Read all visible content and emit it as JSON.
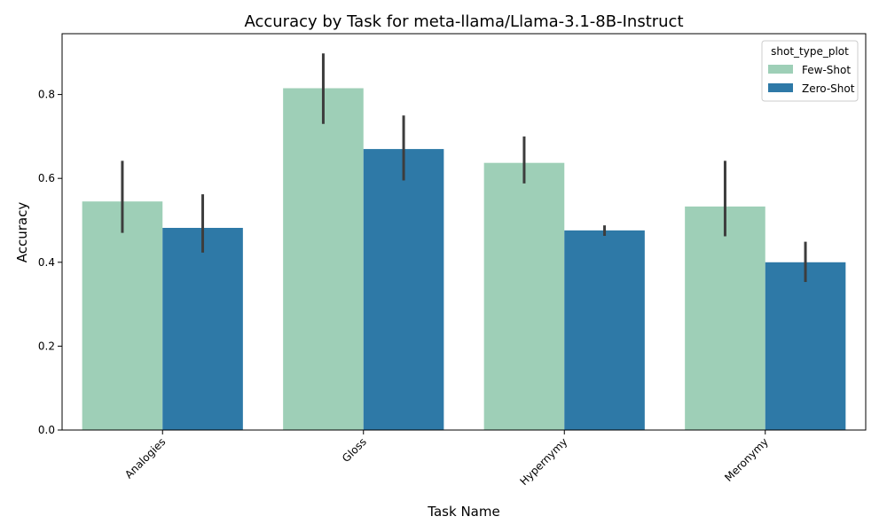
{
  "chart_data": {
    "type": "bar",
    "title": "Accuracy by Task for meta-llama/Llama-3.1-8B-Instruct",
    "xlabel": "Task Name",
    "ylabel": "Accuracy",
    "categories": [
      "Analogies",
      "Gloss",
      "Hypernymy",
      "Meronymy"
    ],
    "ylim": [
      0,
      0.945
    ],
    "yticks": [
      0.0,
      0.2,
      0.4,
      0.6,
      0.8
    ],
    "ytick_labels": [
      "0.0",
      "0.2",
      "0.4",
      "0.6",
      "0.8"
    ],
    "legend": {
      "title": "shot_type_plot",
      "placement": "top-right"
    },
    "grid": false,
    "series": [
      {
        "name": "Few-Shot",
        "color": "#9ecfb7",
        "values": [
          0.545,
          0.815,
          0.637,
          0.533
        ],
        "error_low": [
          0.47,
          0.73,
          0.588,
          0.462
        ],
        "error_high": [
          0.642,
          0.898,
          0.7,
          0.642
        ]
      },
      {
        "name": "Zero-Shot",
        "color": "#2e79a7",
        "values": [
          0.482,
          0.67,
          0.476,
          0.4
        ],
        "error_low": [
          0.423,
          0.595,
          0.463,
          0.353
        ],
        "error_high": [
          0.562,
          0.75,
          0.488,
          0.449
        ]
      }
    ],
    "error_bar_color": "#3d3d3d"
  }
}
